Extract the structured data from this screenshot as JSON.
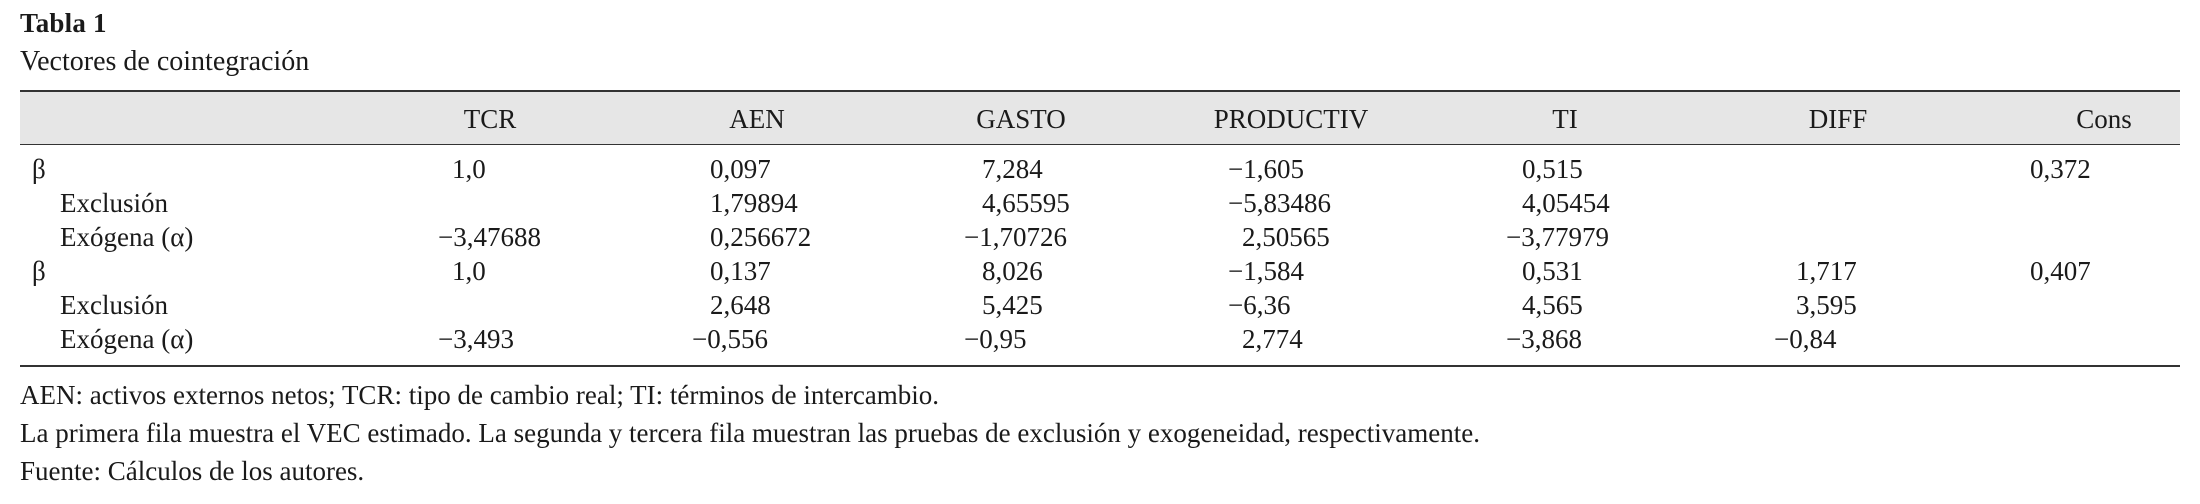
{
  "table": {
    "title": "Tabla 1",
    "subtitle": "Vectores de cointegración",
    "columns": [
      "TCR",
      "AEN",
      "GASTO",
      "PRODUCTIV",
      "TI",
      "DIFF",
      "Cons"
    ],
    "rows": [
      {
        "label": "β",
        "cells": [
          "1,0",
          "0,097",
          "7,284",
          "−1,605",
          "0,515",
          "",
          "0,372"
        ]
      },
      {
        "label": "Exclusión",
        "cells": [
          "",
          "1,79894",
          "4,65595",
          "−5,83486",
          "4,05454",
          "",
          ""
        ]
      },
      {
        "label": "Exógena (α)",
        "cells": [
          "−3,47688",
          "0,256672",
          "−1,70726",
          "2,50565",
          "−3,77979",
          "",
          ""
        ]
      },
      {
        "label": "β",
        "cells": [
          "1,0",
          "0,137",
          "8,026",
          "−1,584",
          "0,531",
          "1,717",
          "0,407"
        ]
      },
      {
        "label": "Exclusión",
        "cells": [
          "",
          "2,648",
          "5,425",
          "−6,36",
          "4,565",
          "3,595",
          ""
        ]
      },
      {
        "label": "Exógena (α)",
        "cells": [
          "−3,493",
          "−0,556",
          "−0,95",
          "2,774",
          "−3,868",
          "−0,84",
          ""
        ]
      }
    ],
    "notes": [
      "AEN: activos externos netos; TCR: tipo de cambio real; TI: términos de intercambio.",
      "La primera fila muestra el VEC estimado. La segunda y tercera fila muestran las pruebas de exclusión y exogeneidad, respectivamente.",
      "Fuente: Cálculos de los autores."
    ]
  }
}
